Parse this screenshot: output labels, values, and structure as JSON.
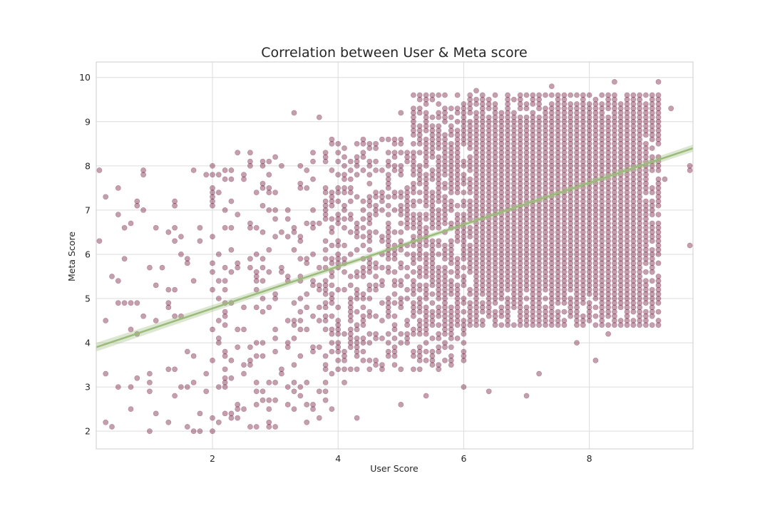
{
  "chart_data": {
    "type": "scatter",
    "title": "Correlation between User & Meta score",
    "xlabel": "User Score",
    "ylabel": "Meta Score",
    "xlim": [
      0.15,
      9.65
    ],
    "ylim": [
      1.6,
      10.35
    ],
    "x_ticks": [
      "2",
      "4",
      "6",
      "8"
    ],
    "x_tick_values": [
      2,
      4,
      6,
      8
    ],
    "y_ticks": [
      "2",
      "3",
      "4",
      "5",
      "6",
      "7",
      "8",
      "9",
      "10"
    ],
    "y_tick_values": [
      2,
      3,
      4,
      5,
      6,
      7,
      8,
      9,
      10
    ],
    "grid": true,
    "point_grid_step": 0.1,
    "point_color": "#6b0f35",
    "point_alpha": 0.4,
    "regression_line": {
      "x": [
        0.15,
        9.65
      ],
      "y": [
        3.9,
        8.4
      ],
      "color": "#9bbb7a"
    },
    "density_regions": [
      {
        "x_range": [
          6.2,
          8.8
        ],
        "y_range": [
          5.2,
          9.2
        ],
        "density": 1.0
      },
      {
        "x_range": [
          5.2,
          9.2
        ],
        "y_range": [
          4.4,
          9.7
        ],
        "density": 0.8
      },
      {
        "x_range": [
          3.8,
          6.0
        ],
        "y_range": [
          3.4,
          8.6
        ],
        "density": 0.5
      },
      {
        "x_range": [
          2.0,
          4.0
        ],
        "y_range": [
          2.1,
          8.3
        ],
        "density": 0.16
      },
      {
        "x_range": [
          0.15,
          2.0
        ],
        "y_range": [
          2.0,
          8.0
        ],
        "density": 0.05
      }
    ],
    "points_sample": [
      [
        0.2,
        6.3
      ],
      [
        0.5,
        6.9
      ],
      [
        0.6,
        5.9
      ],
      [
        0.7,
        4.3
      ],
      [
        0.8,
        7.2
      ],
      [
        0.9,
        7.9
      ],
      [
        1.1,
        4.5
      ],
      [
        1.2,
        5.7
      ],
      [
        1.3,
        2.2
      ],
      [
        1.5,
        6.0
      ],
      [
        1.7,
        2.0
      ],
      [
        1.7,
        3.1
      ],
      [
        1.8,
        2.4
      ],
      [
        1.9,
        7.8
      ],
      [
        2.0,
        2.0
      ],
      [
        2.0,
        3.6
      ],
      [
        2.1,
        7.4
      ],
      [
        2.2,
        2.4
      ],
      [
        2.4,
        6.9
      ],
      [
        2.6,
        3.6
      ],
      [
        2.9,
        2.1
      ],
      [
        3.0,
        8.2
      ],
      [
        3.3,
        9.2
      ],
      [
        3.4,
        2.8
      ],
      [
        3.6,
        2.5
      ],
      [
        3.7,
        9.1
      ],
      [
        3.9,
        2.5
      ],
      [
        4.1,
        3.1
      ],
      [
        4.3,
        2.3
      ],
      [
        4.6,
        8.5
      ],
      [
        5.0,
        9.2
      ],
      [
        5.0,
        2.6
      ],
      [
        5.4,
        2.8
      ],
      [
        6.0,
        3.0
      ],
      [
        6.2,
        9.7
      ],
      [
        6.4,
        2.9
      ],
      [
        6.8,
        9.5
      ],
      [
        7.0,
        2.8
      ],
      [
        7.2,
        3.3
      ],
      [
        7.4,
        9.8
      ],
      [
        7.8,
        4.0
      ],
      [
        8.1,
        3.6
      ],
      [
        8.3,
        4.2
      ],
      [
        8.4,
        9.9
      ],
      [
        8.6,
        4.6
      ],
      [
        8.8,
        4.4
      ],
      [
        9.1,
        9.9
      ],
      [
        9.2,
        7.7
      ],
      [
        9.3,
        9.3
      ],
      [
        9.6,
        8.0
      ],
      [
        9.6,
        6.2
      ],
      [
        9.6,
        7.9
      ]
    ]
  }
}
